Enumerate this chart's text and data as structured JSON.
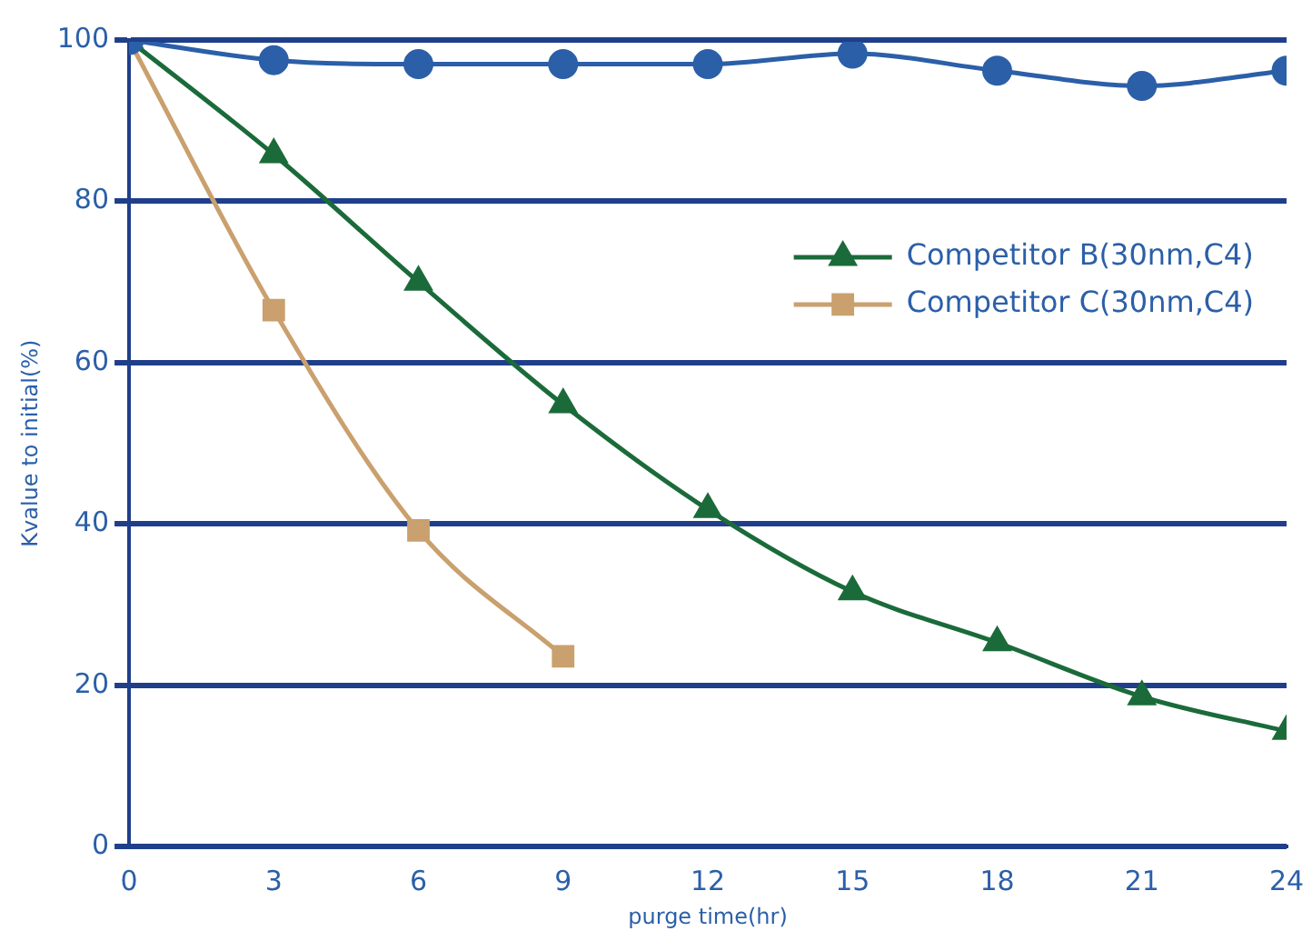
{
  "chart_data": {
    "type": "line",
    "xlabel": "purge time(hr)",
    "ylabel": "Kvalue to initial(%)",
    "x": [
      0,
      3,
      6,
      9,
      12,
      15,
      18,
      21,
      24
    ],
    "series": [
      {
        "color": "#2b5fa8",
        "marker": "circle",
        "values": [
          100,
          97.5,
          97,
          97,
          97,
          98.3,
          96.2,
          94.3,
          96.2
        ]
      },
      {
        "name": "Competitor B(30nm,C4)",
        "color": "#1b6b3a",
        "marker": "triangle",
        "values": [
          100,
          85.8,
          70,
          54.8,
          41.8,
          31.6,
          25.3,
          18.6,
          14.3
        ]
      },
      {
        "name": "Competitor C(30nm,C4)",
        "color": "#c9a06e",
        "marker": "square",
        "values": [
          100,
          66.5,
          39.2,
          23.6,
          null,
          null,
          null,
          null,
          null
        ]
      }
    ],
    "xlim": [
      0,
      24
    ],
    "xticks": [
      0,
      3,
      6,
      9,
      12,
      15,
      18,
      21,
      24
    ],
    "ylim": [
      0,
      100
    ],
    "yticks": [
      0,
      20,
      40,
      60,
      80,
      100
    ],
    "grid": "y",
    "legend": "top right",
    "line_style": "solid"
  }
}
